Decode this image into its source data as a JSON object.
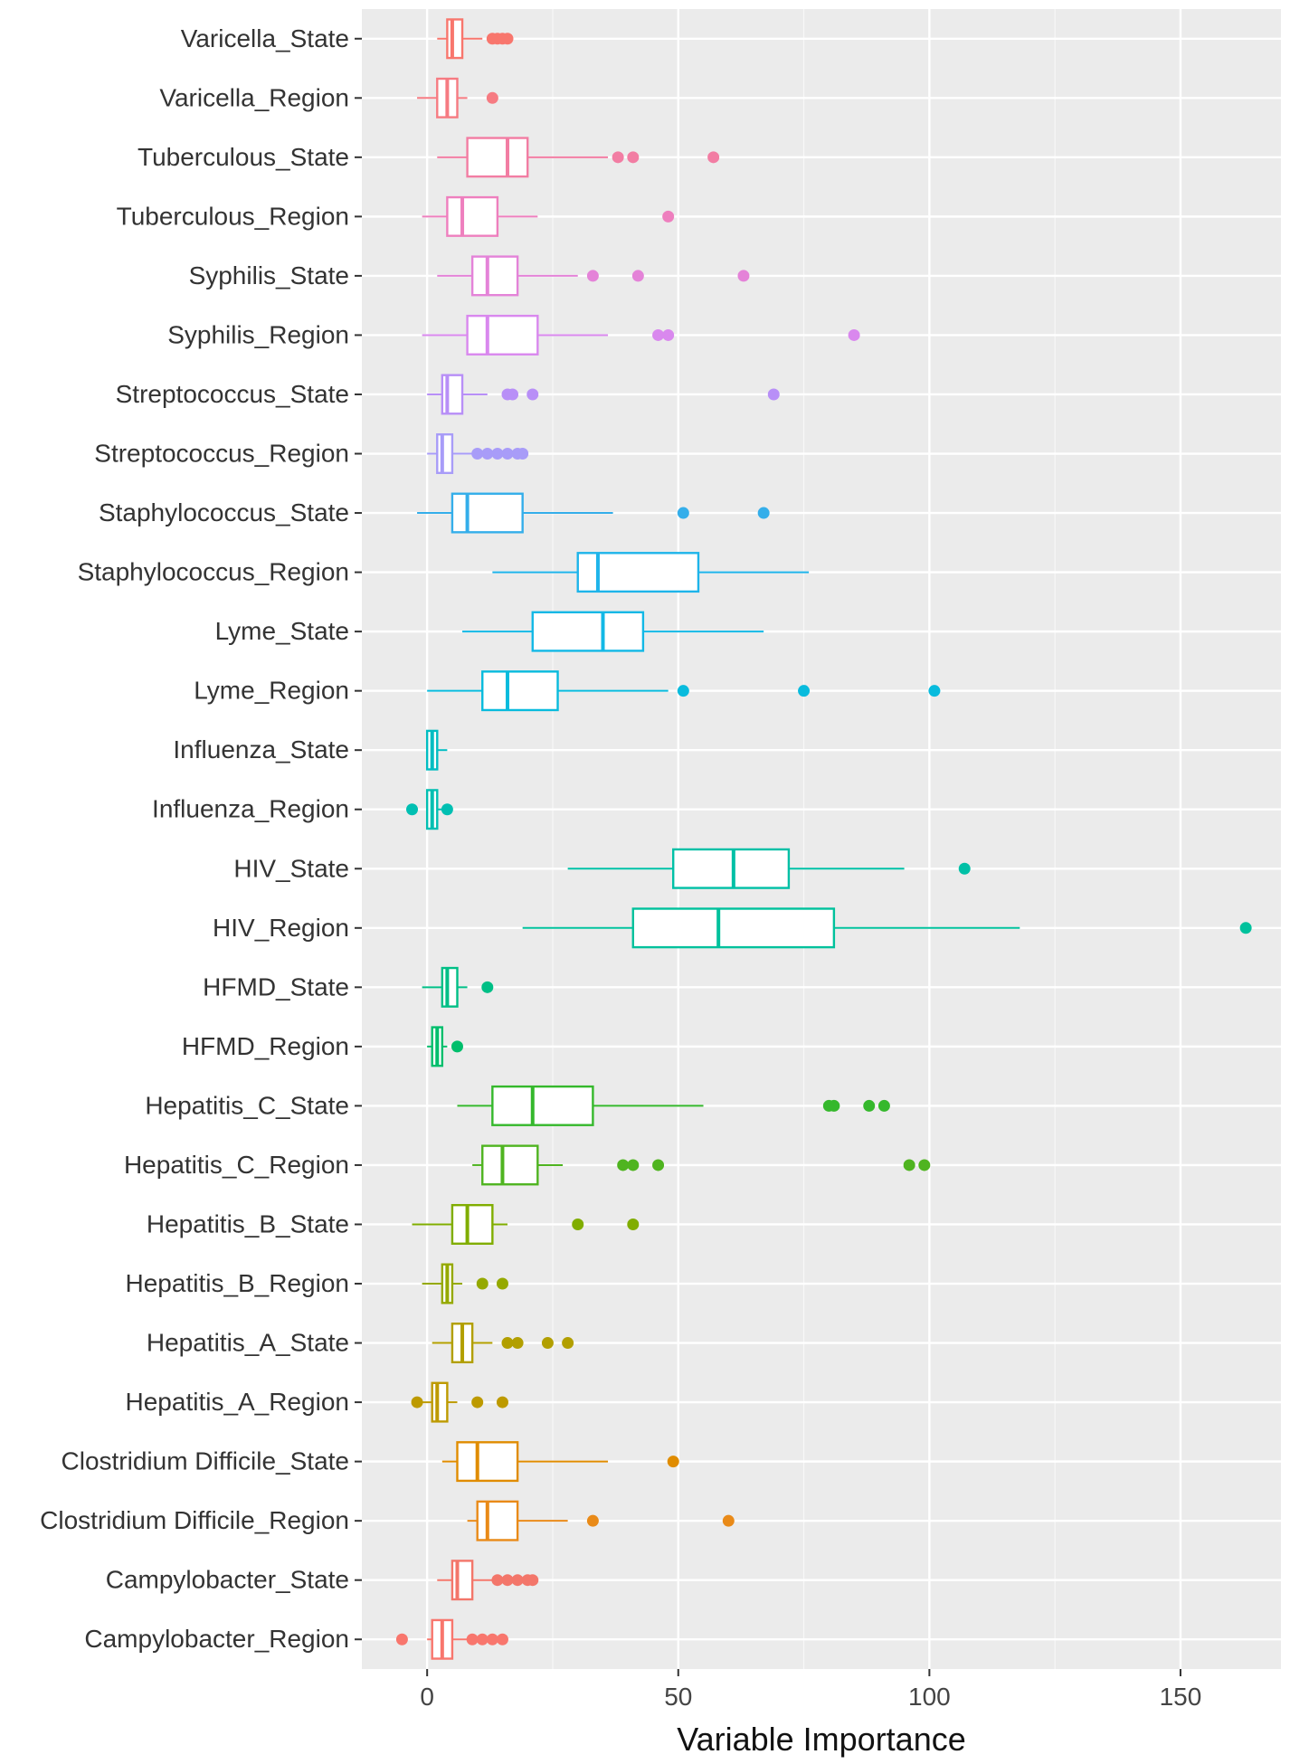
{
  "chart_data": {
    "type": "boxplot",
    "orientation": "horizontal",
    "xlabel": "Variable Importance",
    "ylabel": "",
    "xlim": [
      -13,
      170
    ],
    "xticks": [
      0,
      50,
      100,
      150
    ],
    "xtick_labels": [
      "0",
      "50",
      "100",
      "150"
    ],
    "grid": true,
    "legend": "none",
    "series": [
      {
        "name": "Varicella_State",
        "color": "#F8766D",
        "whisker_low": 2,
        "q1": 4,
        "median": 5,
        "q3": 7,
        "whisker_high": 11,
        "outliers": [
          13,
          14,
          15,
          16
        ]
      },
      {
        "name": "Varicella_Region",
        "color": "#F67B82",
        "whisker_low": -2,
        "q1": 2,
        "median": 4,
        "q3": 6,
        "whisker_high": 8,
        "outliers": [
          13
        ]
      },
      {
        "name": "Tuberculous_State",
        "color": "#F27DA3",
        "whisker_low": 2,
        "q1": 8,
        "median": 16,
        "q3": 20,
        "whisker_high": 36,
        "outliers": [
          38,
          41,
          57
        ]
      },
      {
        "name": "Tuberculous_Region",
        "color": "#EE7FBE",
        "whisker_low": -1,
        "q1": 4,
        "median": 7,
        "q3": 14,
        "whisker_high": 22,
        "outliers": [
          48
        ]
      },
      {
        "name": "Syphilis_State",
        "color": "#E483D8",
        "whisker_low": 2,
        "q1": 9,
        "median": 12,
        "q3": 18,
        "whisker_high": 30,
        "outliers": [
          33,
          42,
          63
        ]
      },
      {
        "name": "Syphilis_Region",
        "color": "#D988EE",
        "whisker_low": -1,
        "q1": 8,
        "median": 12,
        "q3": 22,
        "whisker_high": 36,
        "outliers": [
          46,
          48,
          85
        ]
      },
      {
        "name": "Streptococcus_State",
        "color": "#B88FF7",
        "whisker_low": 0,
        "q1": 3,
        "median": 4,
        "q3": 7,
        "whisker_high": 12,
        "outliers": [
          16,
          17,
          21,
          69
        ]
      },
      {
        "name": "Streptococcus_Region",
        "color": "#A89CF8",
        "whisker_low": 0,
        "q1": 2,
        "median": 3,
        "q3": 5,
        "whisker_high": 9,
        "outliers": [
          10,
          12,
          14,
          16,
          18,
          19
        ]
      },
      {
        "name": "Staphylococcus_State",
        "color": "#34AEEA",
        "whisker_low": -2,
        "q1": 5,
        "median": 8,
        "q3": 19,
        "whisker_high": 37,
        "outliers": [
          51,
          67
        ]
      },
      {
        "name": "Staphylococcus_Region",
        "color": "#1EB4EA",
        "whisker_low": 13,
        "q1": 30,
        "median": 34,
        "q3": 54,
        "whisker_high": 76,
        "outliers": []
      },
      {
        "name": "Lyme_State",
        "color": "#12B8E6",
        "whisker_low": 7,
        "q1": 21,
        "median": 35,
        "q3": 43,
        "whisker_high": 67,
        "outliers": []
      },
      {
        "name": "Lyme_Region",
        "color": "#08BBDD",
        "whisker_low": 0,
        "q1": 11,
        "median": 16,
        "q3": 26,
        "whisker_high": 48,
        "outliers": [
          51,
          75,
          101
        ]
      },
      {
        "name": "Influenza_State",
        "color": "#00BDC2",
        "whisker_low": 0,
        "q1": 0,
        "median": 1,
        "q3": 2,
        "whisker_high": 4,
        "outliers": []
      },
      {
        "name": "Influenza_Region",
        "color": "#00BFB2",
        "whisker_low": 0,
        "q1": 0,
        "median": 1,
        "q3": 2,
        "whisker_high": 3,
        "outliers": [
          -3,
          4
        ]
      },
      {
        "name": "HIV_State",
        "color": "#00C0A6",
        "whisker_low": 28,
        "q1": 49,
        "median": 61,
        "q3": 72,
        "whisker_high": 95,
        "outliers": [
          107
        ]
      },
      {
        "name": "HIV_Region",
        "color": "#00C19C",
        "whisker_low": 19,
        "q1": 41,
        "median": 58,
        "q3": 81,
        "whisker_high": 118,
        "outliers": [
          163
        ]
      },
      {
        "name": "HFMD_State",
        "color": "#00BF86",
        "whisker_low": -1,
        "q1": 3,
        "median": 4,
        "q3": 6,
        "whisker_high": 8,
        "outliers": [
          12
        ]
      },
      {
        "name": "HFMD_Region",
        "color": "#00BE6C",
        "whisker_low": 0,
        "q1": 1,
        "median": 2,
        "q3": 3,
        "whisker_high": 4,
        "outliers": [
          6
        ]
      },
      {
        "name": "Hepatitis_C_State",
        "color": "#35B82C",
        "whisker_low": 6,
        "q1": 13,
        "median": 21,
        "q3": 33,
        "whisker_high": 55,
        "outliers": [
          80,
          81,
          88,
          91
        ]
      },
      {
        "name": "Hepatitis_C_Region",
        "color": "#4FB420",
        "whisker_low": 9,
        "q1": 11,
        "median": 15,
        "q3": 22,
        "whisker_high": 27,
        "outliers": [
          39,
          41,
          46,
          96,
          99
        ]
      },
      {
        "name": "Hepatitis_B_State",
        "color": "#80AD00",
        "whisker_low": -3,
        "q1": 5,
        "median": 8,
        "q3": 13,
        "whisker_high": 16,
        "outliers": [
          30,
          41
        ]
      },
      {
        "name": "Hepatitis_B_Region",
        "color": "#95A900",
        "whisker_low": -1,
        "q1": 3,
        "median": 4,
        "q3": 5,
        "whisker_high": 7,
        "outliers": [
          11,
          15
        ]
      },
      {
        "name": "Hepatitis_A_State",
        "color": "#B29F00",
        "whisker_low": 1,
        "q1": 5,
        "median": 7,
        "q3": 9,
        "whisker_high": 13,
        "outliers": [
          16,
          18,
          24,
          28
        ]
      },
      {
        "name": "Hepatitis_A_Region",
        "color": "#BD9A00",
        "whisker_low": -2,
        "q1": 1,
        "median": 2,
        "q3": 4,
        "whisker_high": 6,
        "outliers": [
          -2,
          10,
          15
        ]
      },
      {
        "name": "Clostridium Difficile_State",
        "color": "#E08C00",
        "whisker_low": 3,
        "q1": 6,
        "median": 10,
        "q3": 18,
        "whisker_high": 36,
        "outliers": [
          49
        ]
      },
      {
        "name": "Clostridium Difficile_Region",
        "color": "#E98A18",
        "whisker_low": 8,
        "q1": 10,
        "median": 12,
        "q3": 18,
        "whisker_high": 28,
        "outliers": [
          33,
          60
        ]
      },
      {
        "name": "Campylobacter_State",
        "color": "#F3766A",
        "whisker_low": 2,
        "q1": 5,
        "median": 6,
        "q3": 9,
        "whisker_high": 13,
        "outliers": [
          14,
          16,
          18,
          20,
          21
        ]
      },
      {
        "name": "Campylobacter_Region",
        "color": "#F8766D",
        "whisker_low": 0,
        "q1": 1,
        "median": 3,
        "q3": 5,
        "whisker_high": 8,
        "outliers": [
          -5,
          9,
          11,
          13,
          15
        ]
      }
    ]
  }
}
